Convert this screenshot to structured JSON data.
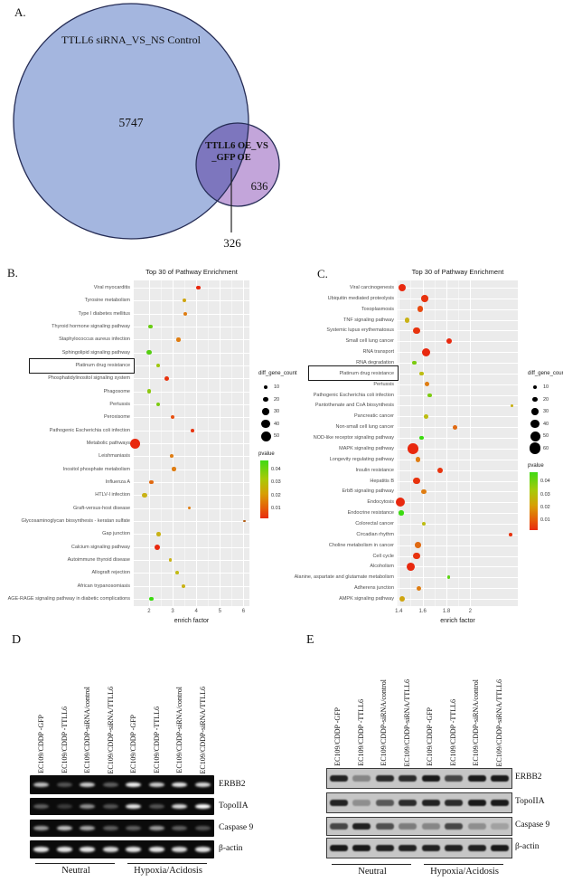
{
  "panel_a": {
    "letter": "A.",
    "venn": {
      "set1": {
        "label": "TTLL6 siRNA_VS_NS Control",
        "count": "5747",
        "fill": "#a4b6df",
        "stroke": "#252c55"
      },
      "set2": {
        "label_line1": "TTLL6 OE_VS",
        "label_line2": "_GFP OE",
        "count": "636",
        "fill": "#c3a5da",
        "stroke": "#252c55"
      },
      "overlap": {
        "count": "326"
      }
    }
  },
  "panel_b": {
    "letter": "B."
  },
  "panel_c": {
    "letter": "C."
  },
  "chart_data": [
    {
      "type": "scatter",
      "title": "Top 30 of Pathway Enrichment",
      "xlabel": "enrich factor",
      "x_ticks": [
        2,
        3,
        4,
        5,
        6
      ],
      "xlim": [
        1.35,
        6.25
      ],
      "grid": true,
      "size_legend": {
        "title": "diff_gene_count",
        "values": [
          10,
          20,
          30,
          40,
          50
        ]
      },
      "color_legend": {
        "title": "pvalue",
        "ticks": [
          "0.04",
          "0.03",
          "0.02",
          "0.01"
        ],
        "top_color": "#3fda14",
        "bottom_color": "#e82c10"
      },
      "points": [
        {
          "label": "Viral myocarditis",
          "x": 4.1,
          "size": 14,
          "color": "#e8280e"
        },
        {
          "label": "Tyrosine metabolism",
          "x": 3.5,
          "size": 7,
          "color": "#cfa50f"
        },
        {
          "label": "Type I diabetes mellitus",
          "x": 3.55,
          "size": 9,
          "color": "#df7d12"
        },
        {
          "label": "Thyroid hormone signaling pathway",
          "x": 2.05,
          "size": 14,
          "color": "#69cc14"
        },
        {
          "label": "Staphylococcus aureus infection",
          "x": 3.25,
          "size": 11,
          "color": "#df7d12"
        },
        {
          "label": "Sphingolipid signaling pathway",
          "x": 2.0,
          "size": 15,
          "color": "#55ce11"
        },
        {
          "label": "Platinum drug resistance",
          "x": 2.4,
          "size": 8,
          "color": "#9fc70e",
          "boxed": true
        },
        {
          "label": "Phosphatidylinositol signaling system",
          "x": 2.75,
          "size": 15,
          "color": "#e8330e"
        },
        {
          "label": "Phagosome",
          "x": 2.0,
          "size": 13,
          "color": "#8ec811"
        },
        {
          "label": "Pertussis",
          "x": 2.4,
          "size": 9,
          "color": "#7bcb10"
        },
        {
          "label": "Peroxisome",
          "x": 3.0,
          "size": 10,
          "color": "#e85010"
        },
        {
          "label": "Pathogenic Escherichia coli infection",
          "x": 3.85,
          "size": 8,
          "color": "#e8330e"
        },
        {
          "label": "Metabolic pathways",
          "x": 1.4,
          "size": 50,
          "color": "#e8280e"
        },
        {
          "label": "Leishmaniasis",
          "x": 2.95,
          "size": 8,
          "color": "#df7d12"
        },
        {
          "label": "Inositol phosphate metabolism",
          "x": 3.05,
          "size": 12,
          "color": "#df7d12"
        },
        {
          "label": "Influenza A",
          "x": 2.1,
          "size": 12,
          "color": "#e06a12"
        },
        {
          "label": "HTLV-I infection",
          "x": 1.8,
          "size": 18,
          "color": "#c9b216"
        },
        {
          "label": "Graft-versus-host disease",
          "x": 3.7,
          "size": 5,
          "color": "#df7d12"
        },
        {
          "label": "Glycosaminoglycan biosynthesis - keratan sulfate",
          "x": 6.05,
          "size": 2,
          "color": "#b05a10"
        },
        {
          "label": "Gap junction",
          "x": 2.4,
          "size": 12,
          "color": "#c9b216"
        },
        {
          "label": "Calcium signaling pathway",
          "x": 2.35,
          "size": 20,
          "color": "#e8280e"
        },
        {
          "label": "Autoimmune thyroid disease",
          "x": 2.9,
          "size": 8,
          "color": "#c9b216"
        },
        {
          "label": "Allograft rejection",
          "x": 3.2,
          "size": 8,
          "color": "#c2bb14"
        },
        {
          "label": "African trypanosomiasis",
          "x": 3.45,
          "size": 7,
          "color": "#c9b216"
        },
        {
          "label": "AGE-RAGE signaling pathway in diabetic complications",
          "x": 2.1,
          "size": 13,
          "color": "#3bdb10"
        }
      ]
    },
    {
      "type": "scatter",
      "title": "Top 30 of Pathway Enrichment",
      "xlabel": "enrich factor",
      "x_ticks": [
        1.4,
        1.6,
        1.8,
        2.0
      ],
      "xlim": [
        1.39,
        2.4
      ],
      "grid": true,
      "size_legend": {
        "title": "diff_gene_count",
        "values": [
          10,
          20,
          30,
          40,
          50,
          60
        ]
      },
      "color_legend": {
        "title": "pvalue",
        "ticks": [
          "0.04",
          "0.03",
          "0.02",
          "0.01"
        ],
        "top_color": "#3fda14",
        "bottom_color": "#e82c10"
      },
      "points": [
        {
          "label": "Viral carcinogenesis",
          "x": 1.43,
          "size": 35,
          "color": "#e8280e"
        },
        {
          "label": "Ubiquitin mediated proteolysis",
          "x": 1.62,
          "size": 30,
          "color": "#e8330e"
        },
        {
          "label": "Toxoplasmosis",
          "x": 1.58,
          "size": 25,
          "color": "#e84a10"
        },
        {
          "label": "TNF signaling pathway",
          "x": 1.47,
          "size": 20,
          "color": "#c9b216"
        },
        {
          "label": "Systemic lupus erythematosus",
          "x": 1.55,
          "size": 28,
          "color": "#e8330e"
        },
        {
          "label": "Small cell lung cancer",
          "x": 1.82,
          "size": 22,
          "color": "#e8280e"
        },
        {
          "label": "RNA transport",
          "x": 1.63,
          "size": 40,
          "color": "#e8280e"
        },
        {
          "label": "RNA degradation",
          "x": 1.53,
          "size": 14,
          "color": "#7bcb10"
        },
        {
          "label": "Platinum drug resistance",
          "x": 1.59,
          "size": 12,
          "color": "#bdbd12",
          "boxed": true
        },
        {
          "label": "Pertussis",
          "x": 1.64,
          "size": 14,
          "color": "#df7d12"
        },
        {
          "label": "Pathogenic Escherichia coli infection",
          "x": 1.66,
          "size": 10,
          "color": "#7bcb10"
        },
        {
          "label": "Pantothenate and CoA biosynthesis",
          "x": 2.35,
          "size": 2,
          "color": "#c9b216"
        },
        {
          "label": "Pancreatic cancer",
          "x": 1.63,
          "size": 13,
          "color": "#bdbd12"
        },
        {
          "label": "Non-small cell lung cancer",
          "x": 1.87,
          "size": 14,
          "color": "#e06a12"
        },
        {
          "label": "NOD-like receptor signaling pathway",
          "x": 1.59,
          "size": 13,
          "color": "#3bdb10"
        },
        {
          "label": "MAPK signaling pathway",
          "x": 1.52,
          "size": 55,
          "color": "#e8280e"
        },
        {
          "label": "Longevity regulating pathway",
          "x": 1.56,
          "size": 18,
          "color": "#df7d12"
        },
        {
          "label": "Insulin resistance",
          "x": 1.75,
          "size": 20,
          "color": "#e8330e"
        },
        {
          "label": "Hepatitis B",
          "x": 1.55,
          "size": 28,
          "color": "#e8330e"
        },
        {
          "label": "ErbB signaling pathway",
          "x": 1.61,
          "size": 16,
          "color": "#df7d12"
        },
        {
          "label": "Endocytosis",
          "x": 1.41,
          "size": 45,
          "color": "#e8280e"
        },
        {
          "label": "Endocrine resistance",
          "x": 1.42,
          "size": 16,
          "color": "#3bdb10"
        },
        {
          "label": "Colorectal cancer",
          "x": 1.61,
          "size": 13,
          "color": "#bdbd12"
        },
        {
          "label": "Circadian rhythm",
          "x": 2.34,
          "size": 7,
          "color": "#e8330e"
        },
        {
          "label": "Choline metabolism in cancer",
          "x": 1.56,
          "size": 24,
          "color": "#e06a12"
        },
        {
          "label": "Cell cycle",
          "x": 1.55,
          "size": 28,
          "color": "#e8330e"
        },
        {
          "label": "Alcoholism",
          "x": 1.5,
          "size": 38,
          "color": "#e8280e"
        },
        {
          "label": "Alanine, aspartate and glutamate metabolism",
          "x": 1.82,
          "size": 7,
          "color": "#5ed515"
        },
        {
          "label": "Adherens junction",
          "x": 1.57,
          "size": 16,
          "color": "#df7d12"
        },
        {
          "label": "AMPK signaling pathway",
          "x": 1.43,
          "size": 22,
          "color": "#cfa50f"
        }
      ]
    }
  ],
  "panel_d": {
    "letter": "D",
    "lane_labels": [
      "EC109/CDDP -GFP",
      "EC109/CDDP -TTLL6",
      "EC109/CDDP-siRNA/control",
      "EC109/CDDP-siRNA/TTLL6",
      "EC109/CDDP -GFP",
      "EC109/CDDP -TTLL6",
      "EC109/CDDP-siRNA/control",
      "EC109/CDDP-siRNA/TTLL6"
    ],
    "blots": [
      {
        "name": "ERBB2",
        "bands": [
          0.75,
          0.3,
          0.8,
          0.35,
          0.95,
          0.8,
          0.9,
          0.85
        ]
      },
      {
        "name": "TopoIIA",
        "bands": [
          0.35,
          0.2,
          0.55,
          0.3,
          0.9,
          0.3,
          0.85,
          1.0
        ]
      },
      {
        "name": "Caspase 9",
        "bands": [
          0.6,
          0.75,
          0.65,
          0.35,
          0.35,
          0.6,
          0.35,
          0.3
        ]
      },
      {
        "name": "β-actin",
        "bands": [
          0.9,
          0.9,
          0.9,
          0.85,
          0.9,
          0.9,
          0.85,
          0.9
        ]
      }
    ],
    "group_labels": [
      "Neutral",
      "Hypoxia/Acidosis"
    ]
  },
  "panel_e": {
    "letter": "E",
    "lane_labels": [
      "EC109/CDDP -GFP",
      "EC109/CDDP -TTLL6",
      "EC109/CDDP-siRNA/control",
      "EC109/CDDP-siRNA/TTLL6",
      "EC109/CDDP -GFP",
      "EC109/CDDP -TTLL6",
      "EC109/CDDP-siRNA/control",
      "EC109/CDDP-siRNA/TTLL6"
    ],
    "blots": [
      {
        "name": "ERBB2",
        "bands": [
          0.9,
          0.35,
          0.85,
          0.85,
          0.95,
          0.7,
          0.95,
          0.95
        ]
      },
      {
        "name": "TopoIIA",
        "bands": [
          0.9,
          0.3,
          0.6,
          0.85,
          0.9,
          0.85,
          0.95,
          0.95
        ]
      },
      {
        "name": "Caspase 9",
        "bands": [
          0.7,
          0.9,
          0.65,
          0.4,
          0.35,
          0.7,
          0.3,
          0.2
        ]
      },
      {
        "name": "β-actin",
        "bands": [
          0.95,
          0.95,
          0.9,
          0.9,
          0.9,
          0.9,
          0.9,
          0.95
        ]
      }
    ],
    "group_labels": [
      "Neutral",
      "Hypoxia/Acidosis"
    ]
  }
}
